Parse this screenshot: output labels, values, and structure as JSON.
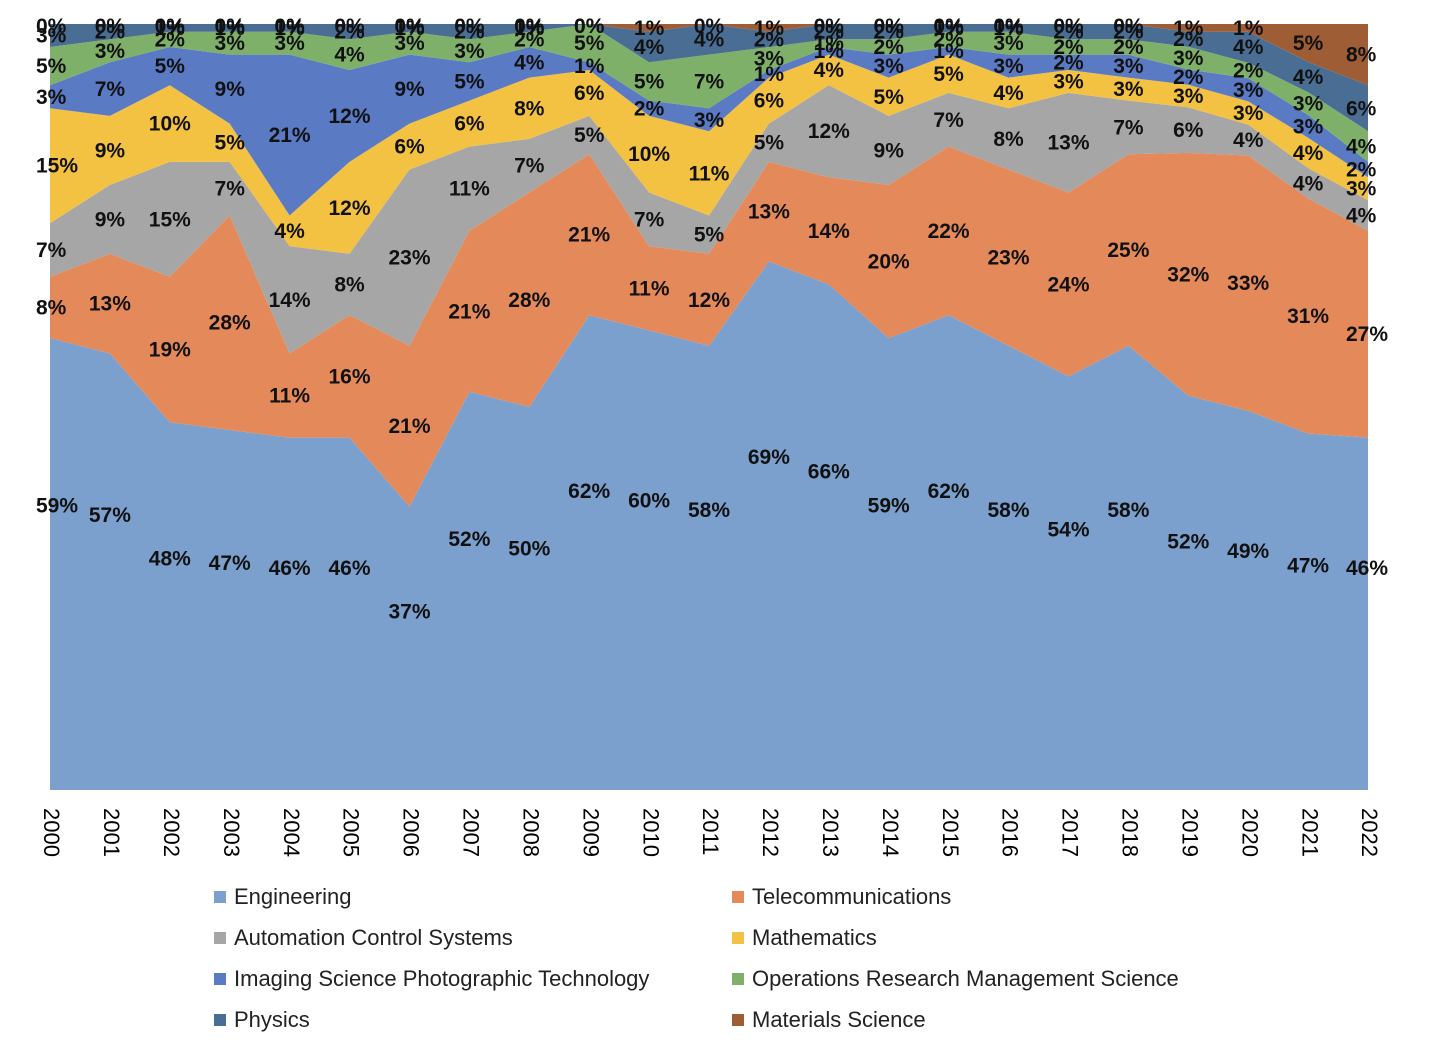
{
  "chart_data": {
    "type": "area",
    "stacked": "percent",
    "title": "",
    "xlabel": "",
    "ylabel": "",
    "ylim": [
      0,
      100
    ],
    "legend_position": "bottom",
    "grid": false,
    "x": [
      "2000",
      "2001",
      "2002",
      "2003",
      "2004",
      "2005",
      "2006",
      "2007",
      "2008",
      "2009",
      "2010",
      "2011",
      "2012",
      "2013",
      "2014",
      "2015",
      "2016",
      "2017",
      "2018",
      "2019",
      "2020",
      "2021",
      "2022"
    ],
    "series": [
      {
        "name": "Engineering",
        "color": "#7BA0CD",
        "values": [
          59,
          57,
          48,
          47,
          46,
          46,
          37,
          52,
          50,
          62,
          60,
          58,
          69,
          66,
          59,
          62,
          58,
          54,
          58,
          52,
          49,
          47,
          46
        ]
      },
      {
        "name": "Telecommunications",
        "color": "#E48A5A",
        "values": [
          8,
          13,
          19,
          28,
          11,
          16,
          21,
          21,
          28,
          21,
          11,
          12,
          13,
          14,
          20,
          22,
          23,
          24,
          25,
          32,
          33,
          31,
          27
        ]
      },
      {
        "name": "Automation Control Systems",
        "color": "#A6A6A6",
        "values": [
          7,
          9,
          15,
          7,
          14,
          8,
          23,
          11,
          7,
          5,
          7,
          5,
          5,
          12,
          9,
          7,
          8,
          13,
          7,
          6,
          4,
          4,
          4
        ]
      },
      {
        "name": "Mathematics",
        "color": "#F4C242",
        "values": [
          15,
          9,
          10,
          5,
          4,
          12,
          6,
          6,
          8,
          6,
          10,
          11,
          6,
          4,
          5,
          5,
          4,
          3,
          3,
          3,
          3,
          4,
          3
        ]
      },
      {
        "name": "Imaging Science Photographic Technology",
        "color": "#5A7AC4",
        "values": [
          3,
          7,
          5,
          9,
          21,
          12,
          9,
          5,
          4,
          1,
          2,
          3,
          1,
          1,
          3,
          1,
          3,
          2,
          3,
          2,
          3,
          3,
          2
        ]
      },
      {
        "name": "Operations Research Management Science",
        "color": "#7FB06A",
        "values": [
          5,
          3,
          2,
          3,
          3,
          4,
          3,
          3,
          2,
          5,
          5,
          7,
          3,
          1,
          2,
          2,
          3,
          2,
          2,
          3,
          2,
          3,
          4
        ]
      },
      {
        "name": "Physics",
        "color": "#4A6E93",
        "values": [
          3,
          2,
          1,
          1,
          1,
          2,
          1,
          2,
          1,
          0,
          4,
          4,
          2,
          2,
          2,
          1,
          1,
          2,
          2,
          2,
          4,
          4,
          6
        ]
      },
      {
        "name": "Materials Science",
        "color": "#9E5D34",
        "values": [
          0,
          0,
          0,
          0,
          0,
          0,
          0,
          0,
          0,
          0,
          1,
          0,
          1,
          0,
          0,
          0,
          0,
          0,
          0,
          1,
          1,
          5,
          8
        ]
      }
    ]
  }
}
